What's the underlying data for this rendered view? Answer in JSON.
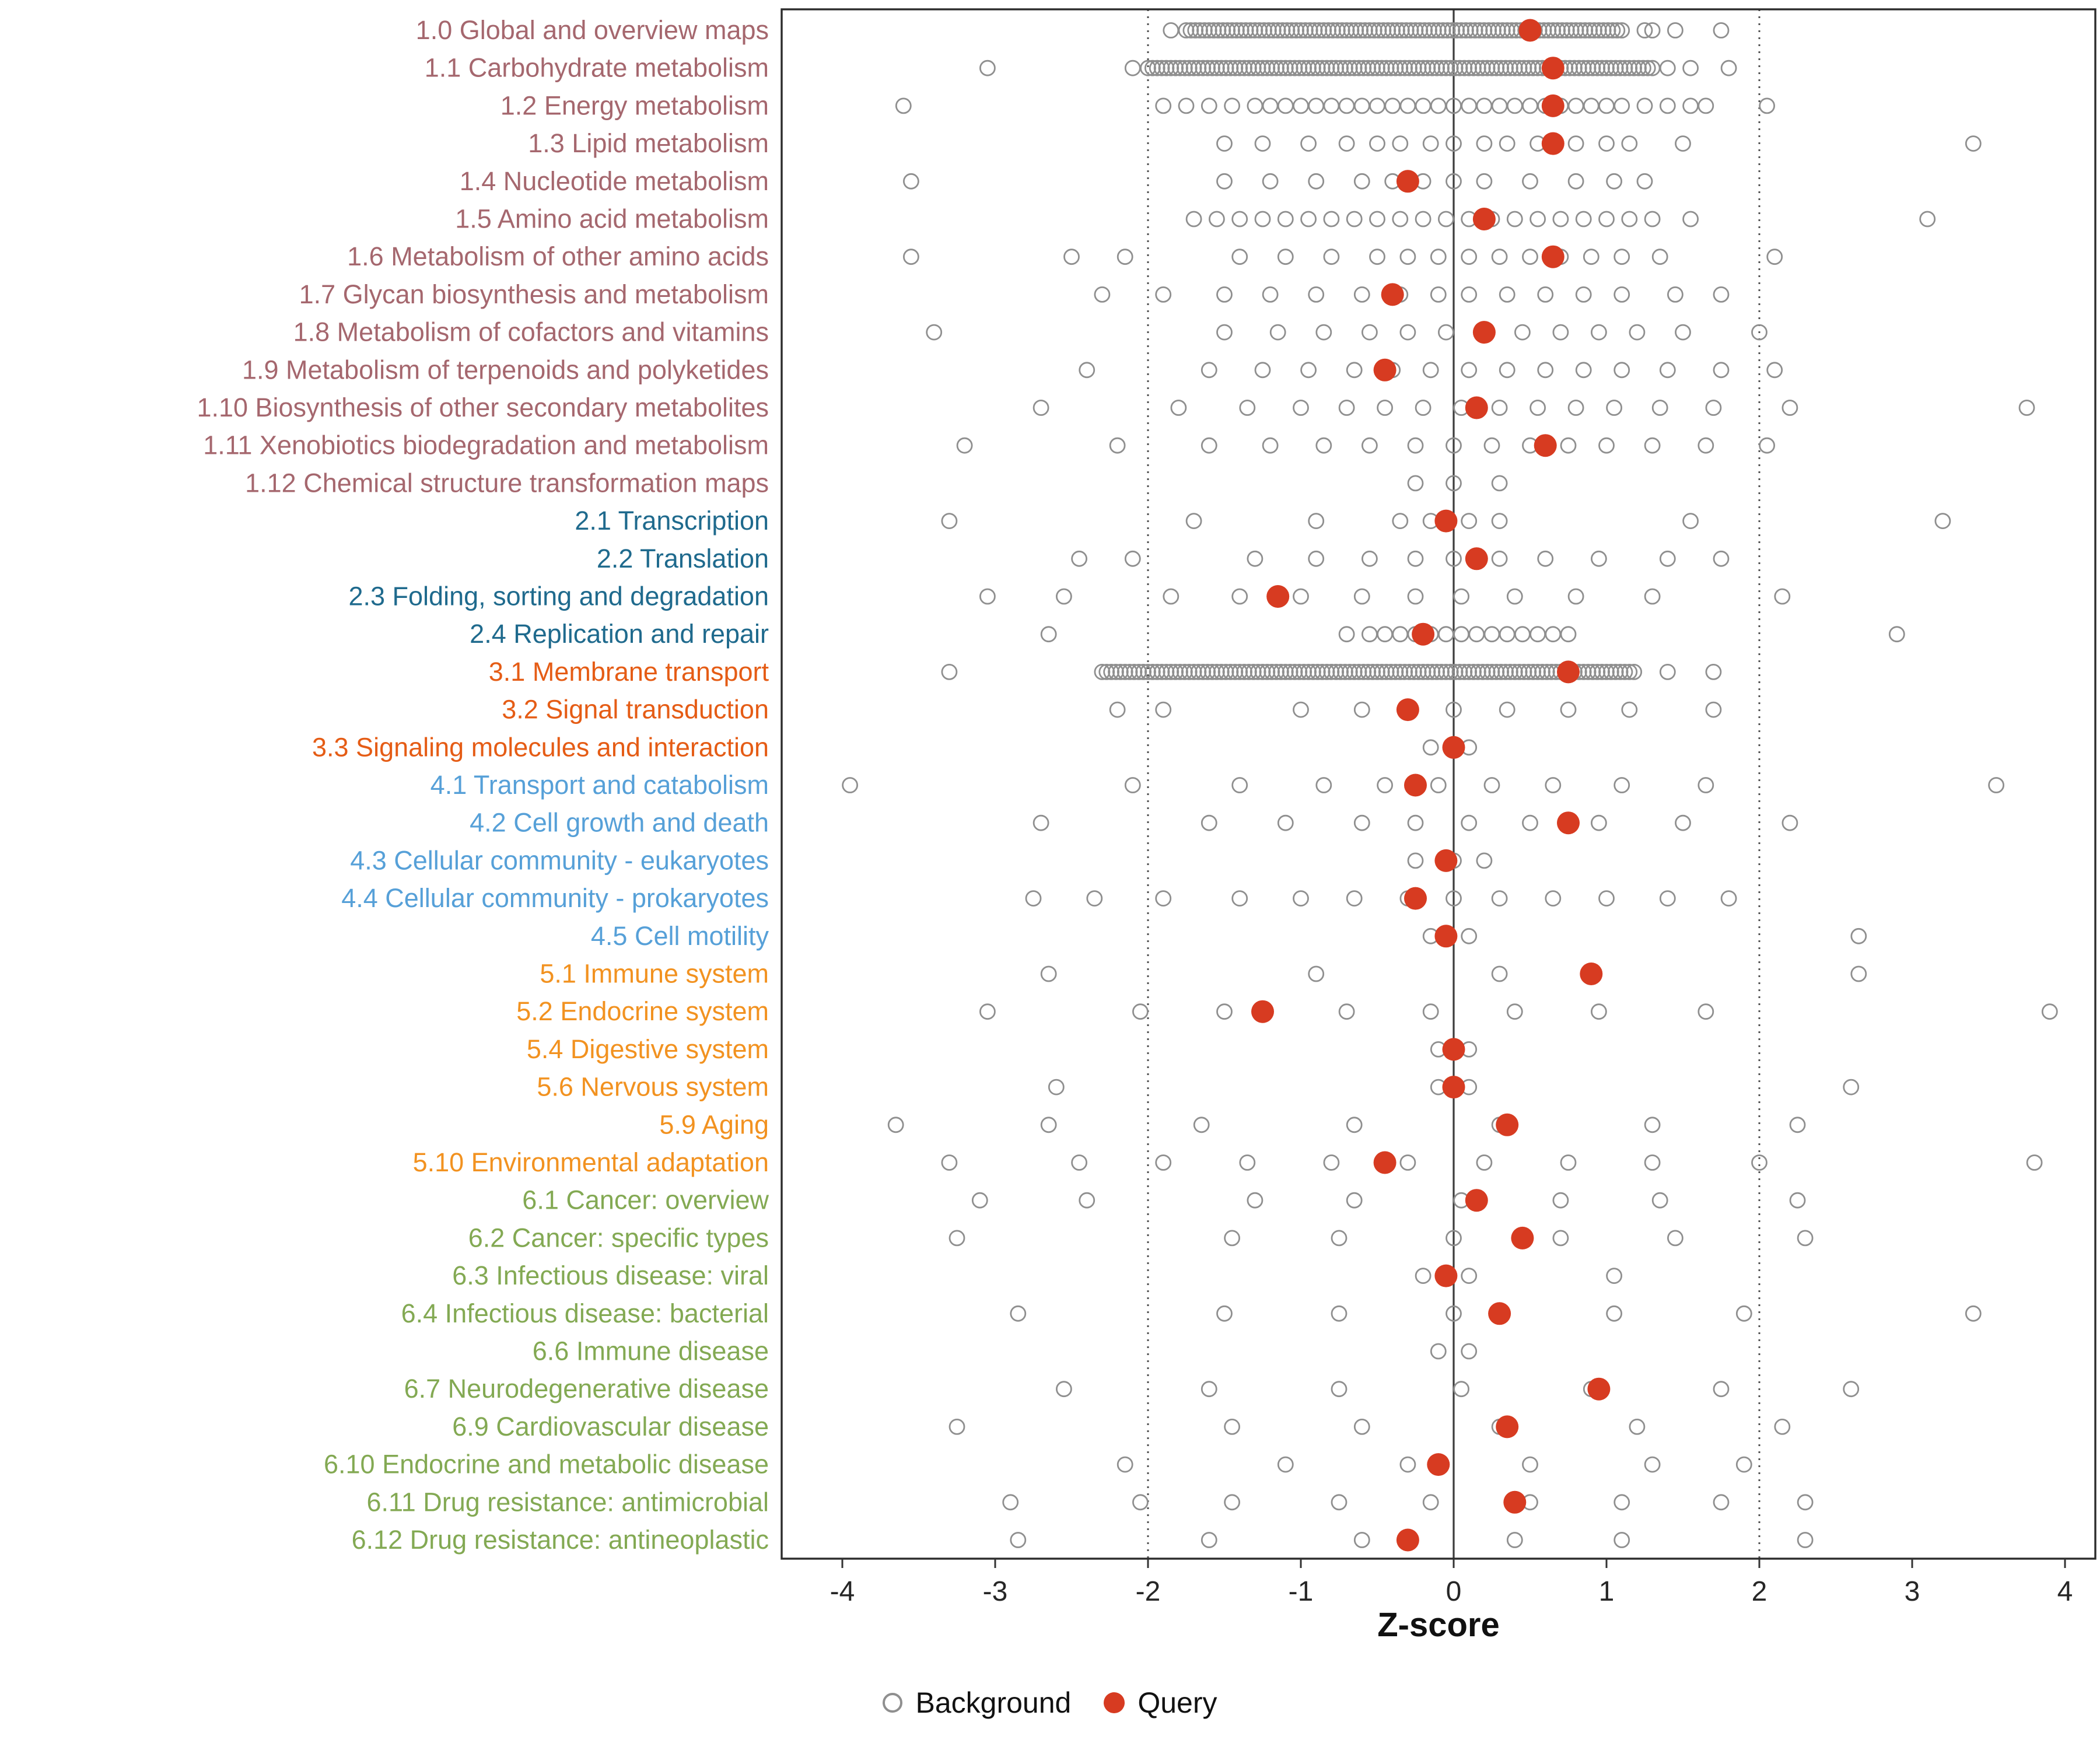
{
  "chart_data": {
    "type": "scatter",
    "title": "",
    "xlabel": "Z-score",
    "ylabel": "",
    "xlim": [
      -4.45,
      4.3
    ],
    "x_ticks": [
      -4,
      -3,
      -2,
      -1,
      0,
      1,
      2,
      3,
      4
    ],
    "reference_lines": {
      "solid": [
        0
      ],
      "dotted": [
        -2,
        2
      ]
    },
    "legend": [
      {
        "label": "Background",
        "marker": "open-circle",
        "color": "#8f8f8f"
      },
      {
        "label": "Query",
        "marker": "filled-circle",
        "color": "#d73b21"
      }
    ],
    "colors": {
      "background_point": "#8f8f8f",
      "query_point": "#d73b21",
      "panel_border": "#2b2b2b",
      "reference_line": "#4d4d4d"
    },
    "group_colors": {
      "metabolism": "#a5676e",
      "genetic": "#1f6a8d",
      "environmental": "#e55c15",
      "cellular": "#56a0d8",
      "organismal": "#f29220",
      "disease": "#83a953"
    },
    "categories": [
      {
        "label": "1.0 Global and overview maps",
        "group": "metabolism",
        "query": 0.5,
        "background_band": [
          -1.75,
          1.1
        ],
        "background": [
          -1.85,
          1.25,
          1.3,
          1.45,
          1.75
        ]
      },
      {
        "label": "1.1 Carbohydrate metabolism",
        "group": "metabolism",
        "query": 0.65,
        "background_band": [
          -2.0,
          1.3
        ],
        "background": [
          -3.05,
          -2.1,
          1.4,
          1.55,
          1.8
        ]
      },
      {
        "label": "1.2 Energy metabolism",
        "group": "metabolism",
        "query": 0.65,
        "background": [
          -3.6,
          -1.9,
          -1.75,
          -1.6,
          -1.45,
          -1.3,
          -1.2,
          -1.1,
          -1.0,
          -0.9,
          -0.8,
          -0.7,
          -0.6,
          -0.5,
          -0.4,
          -0.3,
          -0.2,
          -0.1,
          0.0,
          0.1,
          0.2,
          0.3,
          0.4,
          0.5,
          0.6,
          0.7,
          0.8,
          0.9,
          1.0,
          1.1,
          1.25,
          1.4,
          1.55,
          1.65,
          2.05
        ]
      },
      {
        "label": "1.3 Lipid metabolism",
        "group": "metabolism",
        "query": 0.65,
        "background": [
          -1.5,
          -1.25,
          -0.95,
          -0.7,
          -0.5,
          -0.35,
          -0.15,
          0.0,
          0.2,
          0.35,
          0.55,
          0.8,
          1.0,
          1.15,
          1.5,
          3.4
        ]
      },
      {
        "label": "1.4 Nucleotide metabolism",
        "group": "metabolism",
        "query": -0.3,
        "background": [
          -3.55,
          -1.5,
          -1.2,
          -0.9,
          -0.6,
          -0.4,
          -0.2,
          0.0,
          0.2,
          0.5,
          0.8,
          1.05,
          1.25
        ]
      },
      {
        "label": "1.5 Amino acid metabolism",
        "group": "metabolism",
        "query": 0.2,
        "background": [
          -1.7,
          -1.55,
          -1.4,
          -1.25,
          -1.1,
          -0.95,
          -0.8,
          -0.65,
          -0.5,
          -0.35,
          -0.2,
          -0.05,
          0.1,
          0.25,
          0.4,
          0.55,
          0.7,
          0.85,
          1.0,
          1.15,
          1.3,
          1.55,
          3.1
        ]
      },
      {
        "label": "1.6 Metabolism of other amino acids",
        "group": "metabolism",
        "query": 0.65,
        "background": [
          -3.55,
          -2.5,
          -2.15,
          -1.4,
          -1.1,
          -0.8,
          -0.5,
          -0.3,
          -0.1,
          0.1,
          0.3,
          0.5,
          0.7,
          0.9,
          1.1,
          1.35,
          2.1
        ]
      },
      {
        "label": "1.7 Glycan biosynthesis and metabolism",
        "group": "metabolism",
        "query": -0.4,
        "background": [
          -2.3,
          -1.9,
          -1.5,
          -1.2,
          -0.9,
          -0.6,
          -0.35,
          -0.1,
          0.1,
          0.35,
          0.6,
          0.85,
          1.1,
          1.45,
          1.75
        ]
      },
      {
        "label": "1.8 Metabolism of cofactors and vitamins",
        "group": "metabolism",
        "query": 0.2,
        "background": [
          -3.4,
          -1.5,
          -1.15,
          -0.85,
          -0.55,
          -0.3,
          -0.05,
          0.2,
          0.45,
          0.7,
          0.95,
          1.2,
          1.5,
          2.0
        ]
      },
      {
        "label": "1.9 Metabolism of terpenoids and polyketides",
        "group": "metabolism",
        "query": -0.45,
        "background": [
          -2.4,
          -1.6,
          -1.25,
          -0.95,
          -0.65,
          -0.4,
          -0.15,
          0.1,
          0.35,
          0.6,
          0.85,
          1.1,
          1.4,
          1.75,
          2.1
        ]
      },
      {
        "label": "1.10 Biosynthesis of other secondary metabolites",
        "group": "metabolism",
        "query": 0.15,
        "background": [
          -2.7,
          -1.8,
          -1.35,
          -1.0,
          -0.7,
          -0.45,
          -0.2,
          0.05,
          0.3,
          0.55,
          0.8,
          1.05,
          1.35,
          1.7,
          2.2,
          3.75
        ]
      },
      {
        "label": "1.11 Xenobiotics biodegradation and metabolism",
        "group": "metabolism",
        "query": 0.6,
        "background": [
          -3.2,
          -2.2,
          -1.6,
          -1.2,
          -0.85,
          -0.55,
          -0.25,
          0.0,
          0.25,
          0.5,
          0.75,
          1.0,
          1.3,
          1.65,
          2.05
        ]
      },
      {
        "label": "1.12 Chemical structure transformation maps",
        "group": "metabolism",
        "query": null,
        "background": [
          -0.25,
          0.0,
          0.3
        ]
      },
      {
        "label": "2.1 Transcription",
        "group": "genetic",
        "query": -0.05,
        "background": [
          -3.3,
          -1.7,
          -0.9,
          -0.35,
          -0.15,
          0.1,
          0.3,
          1.55,
          3.2
        ]
      },
      {
        "label": "2.2 Translation",
        "group": "genetic",
        "query": 0.15,
        "background": [
          -2.45,
          -2.1,
          -1.3,
          -0.9,
          -0.55,
          -0.25,
          0.0,
          0.3,
          0.6,
          0.95,
          1.4,
          1.75
        ]
      },
      {
        "label": "2.3 Folding, sorting and degradation",
        "group": "genetic",
        "query": -1.15,
        "background": [
          -3.05,
          -2.55,
          -1.85,
          -1.4,
          -1.0,
          -0.6,
          -0.25,
          0.05,
          0.4,
          0.8,
          1.3,
          2.15
        ]
      },
      {
        "label": "2.4 Replication and repair",
        "group": "genetic",
        "query": -0.2,
        "background": [
          -2.65,
          -0.7,
          -0.55,
          -0.45,
          -0.35,
          -0.25,
          -0.15,
          -0.05,
          0.05,
          0.15,
          0.25,
          0.35,
          0.45,
          0.55,
          0.65,
          0.75,
          2.9
        ]
      },
      {
        "label": "3.1 Membrane transport",
        "group": "environmental",
        "query": 0.75,
        "background_band": [
          -2.3,
          1.2
        ],
        "background": [
          -3.3,
          1.4,
          1.7
        ]
      },
      {
        "label": "3.2 Signal transduction",
        "group": "environmental",
        "query": -0.3,
        "background": [
          -2.2,
          -1.9,
          -1.0,
          -0.6,
          -0.3,
          0.0,
          0.35,
          0.75,
          1.15,
          1.7
        ]
      },
      {
        "label": "3.3 Signaling molecules and interaction",
        "group": "environmental",
        "query": 0.0,
        "background": [
          -0.15,
          0.1
        ]
      },
      {
        "label": "4.1 Transport and catabolism",
        "group": "cellular",
        "query": -0.25,
        "background": [
          -3.95,
          -2.1,
          -1.4,
          -0.85,
          -0.45,
          -0.1,
          0.25,
          0.65,
          1.1,
          1.65,
          3.55
        ]
      },
      {
        "label": "4.2 Cell growth and death",
        "group": "cellular",
        "query": 0.75,
        "background": [
          -2.7,
          -1.6,
          -1.1,
          -0.6,
          -0.25,
          0.1,
          0.5,
          0.95,
          1.5,
          2.2
        ]
      },
      {
        "label": "4.3 Cellular community - eukaryotes",
        "group": "cellular",
        "query": -0.05,
        "background": [
          -0.25,
          0.0,
          0.2
        ]
      },
      {
        "label": "4.4 Cellular community - prokaryotes",
        "group": "cellular",
        "query": -0.25,
        "background": [
          -2.75,
          -2.35,
          -1.9,
          -1.4,
          -1.0,
          -0.65,
          -0.3,
          0.0,
          0.3,
          0.65,
          1.0,
          1.4,
          1.8
        ]
      },
      {
        "label": "4.5 Cell motility",
        "group": "cellular",
        "query": -0.05,
        "background": [
          -0.15,
          0.1,
          2.65
        ]
      },
      {
        "label": "5.1 Immune system",
        "group": "organismal",
        "query": 0.9,
        "background": [
          -2.65,
          -0.9,
          0.3,
          2.65
        ]
      },
      {
        "label": "5.2 Endocrine system",
        "group": "organismal",
        "query": -1.25,
        "background": [
          -3.05,
          -2.05,
          -1.5,
          -0.7,
          -0.15,
          0.4,
          0.95,
          1.65,
          3.9
        ]
      },
      {
        "label": "5.4 Digestive system",
        "group": "organismal",
        "query": 0.0,
        "background": [
          -0.1,
          0.1
        ]
      },
      {
        "label": "5.6 Nervous system",
        "group": "organismal",
        "query": 0.0,
        "background": [
          -2.6,
          -0.1,
          0.1,
          2.6
        ]
      },
      {
        "label": "5.9 Aging",
        "group": "organismal",
        "query": 0.35,
        "background": [
          -3.65,
          -2.65,
          -1.65,
          -0.65,
          0.3,
          1.3,
          2.25
        ]
      },
      {
        "label": "5.10 Environmental adaptation",
        "group": "organismal",
        "query": -0.45,
        "background": [
          -3.3,
          -2.45,
          -1.9,
          -1.35,
          -0.8,
          -0.3,
          0.2,
          0.75,
          1.3,
          2.0,
          3.8
        ]
      },
      {
        "label": "6.1 Cancer: overview",
        "group": "disease",
        "query": 0.15,
        "background": [
          -3.1,
          -2.4,
          -1.3,
          -0.65,
          0.05,
          0.7,
          1.35,
          2.25
        ]
      },
      {
        "label": "6.2 Cancer: specific types",
        "group": "disease",
        "query": 0.45,
        "background": [
          -3.25,
          -1.45,
          -0.75,
          0.0,
          0.7,
          1.45,
          2.3
        ]
      },
      {
        "label": "6.3 Infectious disease: viral",
        "group": "disease",
        "query": -0.05,
        "background": [
          -0.2,
          0.1,
          1.05
        ]
      },
      {
        "label": "6.4 Infectious disease: bacterial",
        "group": "disease",
        "query": 0.3,
        "background": [
          -2.85,
          -1.5,
          -0.75,
          0.0,
          1.05,
          1.9,
          3.4
        ]
      },
      {
        "label": "6.6 Immune disease",
        "group": "disease",
        "query": null,
        "background": [
          -0.1,
          0.1
        ]
      },
      {
        "label": "6.7 Neurodegenerative disease",
        "group": "disease",
        "query": 0.95,
        "background": [
          -2.55,
          -1.6,
          -0.75,
          0.05,
          0.9,
          1.75,
          2.6
        ]
      },
      {
        "label": "6.9 Cardiovascular disease",
        "group": "disease",
        "query": 0.35,
        "background": [
          -3.25,
          -1.45,
          -0.6,
          0.3,
          1.2,
          2.15
        ]
      },
      {
        "label": "6.10 Endocrine and metabolic disease",
        "group": "disease",
        "query": -0.1,
        "background": [
          -2.15,
          -1.1,
          -0.3,
          0.5,
          1.3,
          1.9
        ]
      },
      {
        "label": "6.11 Drug resistance: antimicrobial",
        "group": "disease",
        "query": 0.4,
        "background": [
          -2.9,
          -2.05,
          -1.45,
          -0.75,
          -0.15,
          0.5,
          1.1,
          1.75,
          2.3
        ]
      },
      {
        "label": "6.12 Drug resistance: antineoplastic",
        "group": "disease",
        "query": -0.3,
        "background": [
          -2.85,
          -1.6,
          -0.6,
          0.4,
          1.1,
          2.3
        ]
      }
    ]
  },
  "legend": {
    "background_label": "Background",
    "query_label": "Query"
  }
}
